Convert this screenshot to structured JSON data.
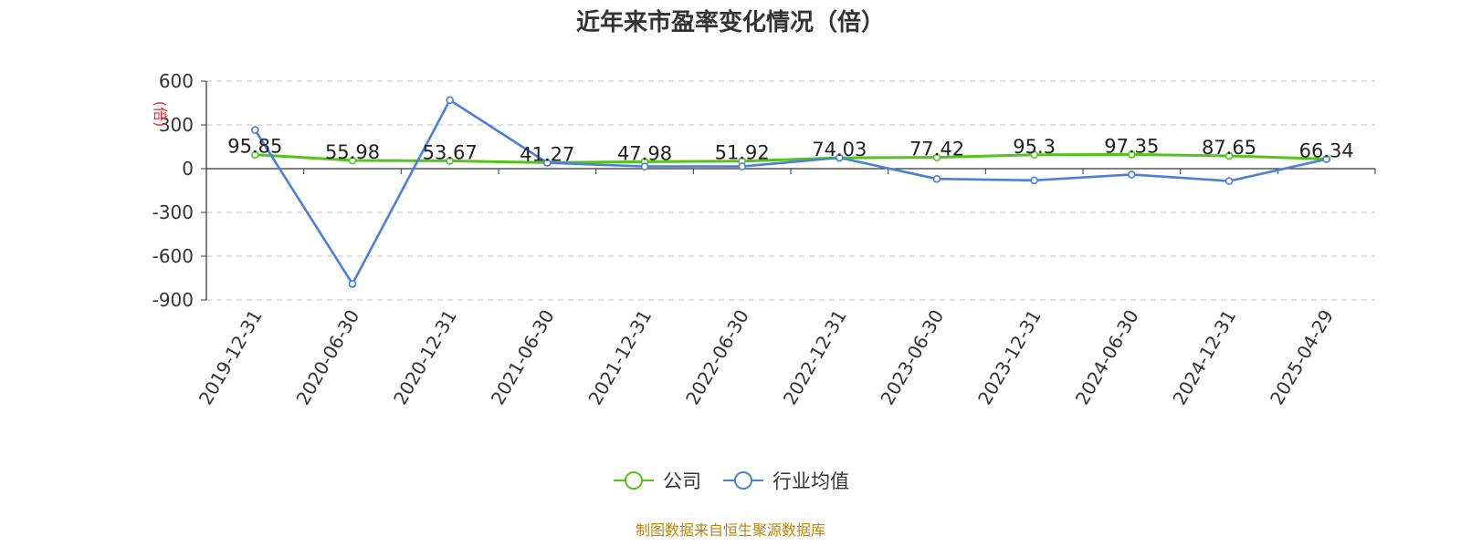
{
  "chart_data": {
    "type": "line",
    "title": "近年来市盈率变化情况（倍）",
    "ylabel": "(倍)",
    "xlabel": "",
    "ylim": [
      -900,
      600
    ],
    "yticks": [
      600,
      300,
      0,
      -300,
      -600,
      -900
    ],
    "ytick_labels": [
      "600",
      "300",
      "0",
      "-300",
      "-600",
      "-900"
    ],
    "grid": true,
    "legend_position": "bottom-center",
    "categories": [
      "2019-12-31",
      "2020-06-30",
      "2020-12-31",
      "2021-06-30",
      "2021-12-31",
      "2022-06-30",
      "2022-12-31",
      "2023-06-30",
      "2023-12-31",
      "2024-06-30",
      "2024-12-31",
      "2025-04-29"
    ],
    "series": [
      {
        "name": "公司",
        "color": "#52c41a",
        "values": [
          95.85,
          55.98,
          53.67,
          41.27,
          47.98,
          51.92,
          74.03,
          77.42,
          95.3,
          97.35,
          87.65,
          66.34
        ],
        "data_labels": [
          "95.85",
          "55.98",
          "53.67",
          "41.27",
          "47.98",
          "51.92",
          "74.03",
          "77.42",
          "95.3",
          "97.35",
          "87.65",
          "66.34"
        ]
      },
      {
        "name": "行业均值",
        "color": "#4a7fdc",
        "values": [
          265,
          -790,
          470,
          40,
          15,
          15,
          75,
          -70,
          -80,
          -40,
          -85,
          65
        ]
      }
    ]
  },
  "source_text": "制图数据来自恒生聚源数据库"
}
